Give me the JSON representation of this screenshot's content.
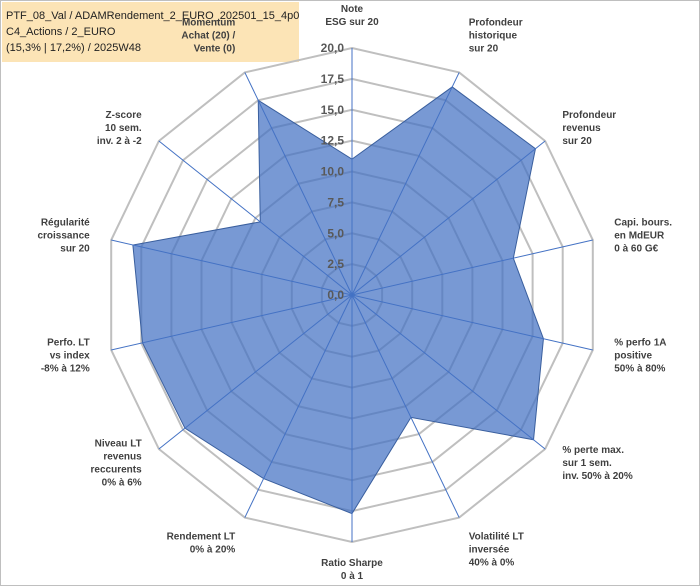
{
  "chart_data": {
    "type": "radar",
    "title": [
      "PTF_08_Val / ADAMRendement_2_EURO_202501_15_4p0",
      "C4_Actions / 2_EURO",
      "(15,3% | 17,2%) / 2025W48"
    ],
    "categories": [
      [
        "Note",
        "ESG sur 20"
      ],
      [
        "Profondeur",
        "historique",
        "sur 20"
      ],
      [
        "Profondeur",
        "revenus",
        "sur 20"
      ],
      [
        "Capi. bours.",
        "en MdEUR",
        "0 à 60 G€"
      ],
      [
        "% perfo 1A",
        "positive",
        "50% à 80%"
      ],
      [
        "% perte max.",
        "sur 1 sem.",
        "inv. 50% à 20%"
      ],
      [
        "Volatilité LT",
        "inversée",
        "40% à 0%"
      ],
      [
        "Ratio Sharpe",
        "0 à 1"
      ],
      [
        "Rendement LT",
        "0% à 20%"
      ],
      [
        "Niveau LT",
        "revenus",
        "reccurents",
        "0% à 6%"
      ],
      [
        "Perfo. LT",
        "vs index",
        "-8% à 12%"
      ],
      [
        "Régularité",
        "croissance",
        "sur 20"
      ],
      [
        "Z-score",
        "10 sem.",
        "inv. 2 à -2"
      ],
      [
        "Momentum",
        "Achat (20) /",
        "Vente (0)"
      ]
    ],
    "values": [
      11,
      18.7,
      19,
      13.4,
      15.9,
      18.8,
      11,
      17.7,
      16.5,
      17.3,
      17.4,
      18.2,
      9.5,
      17.5
    ],
    "color": "#4472c4",
    "ylim": [
      0,
      20
    ],
    "yticks": [
      {
        "value": 0,
        "label": "0,0"
      },
      {
        "value": 2.5,
        "label": "2,5"
      },
      {
        "value": 5,
        "label": "5,0"
      },
      {
        "value": 7.5,
        "label": "7,5"
      },
      {
        "value": 10,
        "label": "10,0"
      },
      {
        "value": 12.5,
        "label": "12,5"
      },
      {
        "value": 15,
        "label": "15,0"
      },
      {
        "value": 17.5,
        "label": "17,5"
      },
      {
        "value": 20,
        "label": "20,0"
      }
    ],
    "grid": true
  }
}
